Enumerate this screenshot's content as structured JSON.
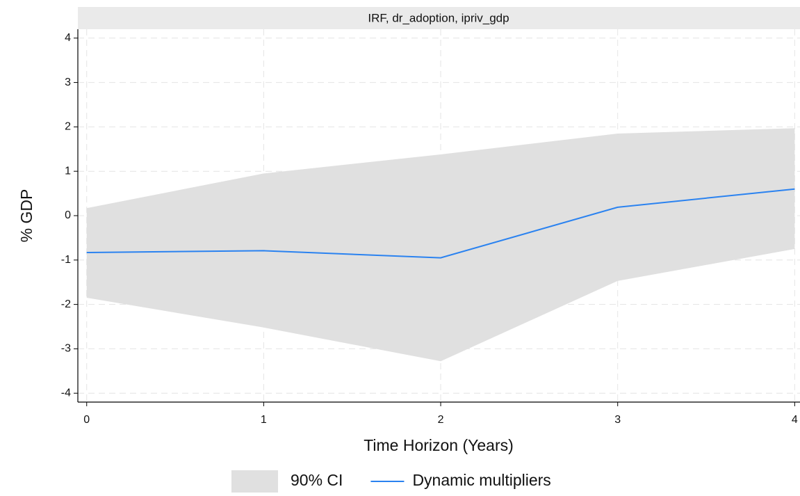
{
  "chart_data": {
    "type": "line",
    "title": "IRF, dr_adoption, ipriv_gdp",
    "x_label": "Time Horizon (Years)",
    "y_label": "% GDP",
    "x": [
      0,
      1,
      2,
      3,
      4
    ],
    "series": [
      {
        "name": "90% CI",
        "color": "#e0e0e0",
        "kind": "band",
        "lower": [
          -1.85,
          -2.52,
          -3.28,
          -1.47,
          -0.75
        ],
        "upper": [
          0.17,
          0.95,
          1.38,
          1.85,
          1.97
        ]
      },
      {
        "name": "Dynamic multipliers",
        "color": "#2a82f0",
        "kind": "line",
        "values": [
          -0.83,
          -0.79,
          -0.95,
          0.19,
          0.6
        ]
      }
    ],
    "xlim": [
      -0.05,
      4.03
    ],
    "ylim": [
      -4.2,
      4.2
    ],
    "xticks": [
      0,
      1,
      2,
      3,
      4
    ],
    "yticks": [
      -4,
      -3,
      -2,
      -1,
      0,
      1,
      2,
      3,
      4
    ],
    "grid": true
  }
}
